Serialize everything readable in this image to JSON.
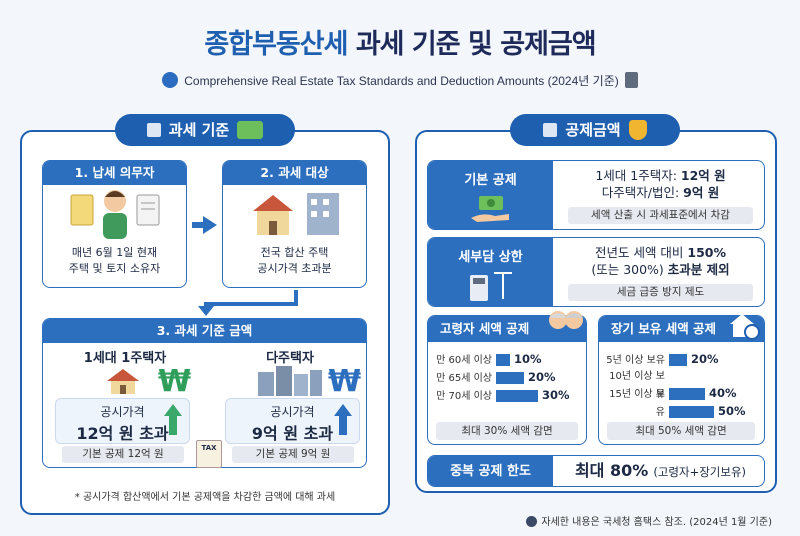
{
  "header": {
    "title_main": "종합부동산세",
    "title_rest": "과세 기준 및 공제금액",
    "subtitle": "Comprehensive Real Estate Tax Standards and Deduction Amounts (2024년 기준)"
  },
  "left_panel": {
    "label": "과세 기준",
    "card1": {
      "head": "1. 납세 의무자",
      "line1": "매년 6월 1일 현재",
      "line2": "주택 및 토지 소유자"
    },
    "card2": {
      "head": "2. 과세 대상",
      "line1": "전국 합산 주택",
      "line2": "공시가격 초과분"
    },
    "card3": {
      "head": "3. 과세 기준 금액",
      "single": {
        "title": "1세대 1주택자",
        "label": "공시가격",
        "amount": "12억 원 초과",
        "deduction": "기본 공제 12억 원"
      },
      "multi": {
        "title": "다주택자",
        "label": "공시가격",
        "amount": "9억 원 초과",
        "deduction": "기본 공제 9억 원"
      },
      "won_symbol": "₩",
      "tax_tag": "TAX"
    },
    "footnote": "* 공시가격 합산액에서 기본 공제액을 차감한 금액에 대해 과세"
  },
  "right_panel": {
    "label": "공제금액",
    "basic": {
      "label": "기본 공제",
      "line1_prefix": "1세대 1주택자: ",
      "line1_value": "12억 원",
      "line2_prefix": "다주택자/법인: ",
      "line2_value": "9억 원",
      "note": "세액 산출 시 과세표준에서 차감"
    },
    "cap": {
      "label": "세부담 상한",
      "line1_prefix": "전년도 세액 대비 ",
      "line1_value": "150%",
      "line2_prefix": "(또는 300%) ",
      "line2_value": "초과분 제외",
      "note": "세금 급증 방지 제도"
    },
    "elderly": {
      "head": "고령자 세액 공제",
      "rows": [
        {
          "label": "만 60세 이상",
          "value": "10%",
          "pct": 10
        },
        {
          "label": "만 65세 이상",
          "value": "20%",
          "pct": 20
        },
        {
          "label": "만 70세 이상",
          "value": "30%",
          "pct": 30
        }
      ],
      "note": "최대 30% 세액 감면"
    },
    "longterm": {
      "head": "장기 보유 세액 공제",
      "rows": [
        {
          "label": "5년 이상 보유",
          "value": "20%",
          "pct": 20
        },
        {
          "label": "10년 이상 보유",
          "value": "40%",
          "pct": 40
        },
        {
          "label": "15년 이상 보유",
          "value": "50%",
          "pct": 50
        }
      ],
      "note": "최대 50% 세액 감면"
    },
    "limit": {
      "label": "중복 공제 한도",
      "value": "최대 80%",
      "suffix": "(고령자+장기보유)"
    }
  },
  "footer": {
    "source": "자세한 내용은 국세청 홈택스 참조. (2024년 1월 기준)"
  },
  "colors": {
    "primary": "#1f5fb0",
    "card_blue": "#2d6fbf",
    "background": "#f3f6fb",
    "green": "#2f9e5a"
  }
}
